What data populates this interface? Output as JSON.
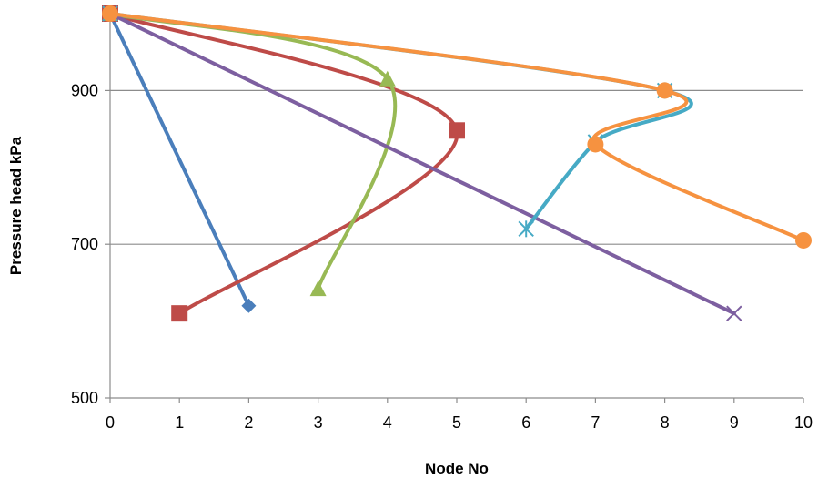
{
  "chart_data": {
    "type": "line",
    "title": "",
    "xlabel": "Node No",
    "ylabel": "Pressure head kPa",
    "xlim": [
      0,
      10
    ],
    "ylim": [
      500,
      1000
    ],
    "xticks": [
      0,
      1,
      2,
      3,
      4,
      5,
      6,
      7,
      8,
      9,
      10
    ],
    "yticks": [
      500,
      700,
      900
    ],
    "grid": "horizontal major gridlines",
    "legend": "none",
    "smoothed": true,
    "series": [
      {
        "color": "#4a7ebb",
        "marker": "diamond",
        "points": [
          [
            0,
            1000
          ],
          [
            2,
            620
          ]
        ]
      },
      {
        "color": "#be4b48",
        "marker": "square",
        "points": [
          [
            0,
            1000
          ],
          [
            5,
            848
          ],
          [
            1,
            610
          ]
        ]
      },
      {
        "color": "#98b954",
        "marker": "triangle",
        "points": [
          [
            0,
            1000
          ],
          [
            4,
            915
          ],
          [
            3,
            642
          ]
        ]
      },
      {
        "color": "#7d5fa0",
        "marker": "x",
        "points": [
          [
            0,
            1000
          ],
          [
            9,
            610
          ]
        ]
      },
      {
        "color": "#46aac5",
        "marker": "star",
        "points": [
          [
            0,
            1000
          ],
          [
            8,
            900
          ],
          [
            7,
            833
          ],
          [
            6,
            720
          ]
        ]
      },
      {
        "color": "#f69240",
        "marker": "circle",
        "points": [
          [
            0,
            1000
          ],
          [
            8,
            900
          ],
          [
            7,
            830
          ],
          [
            10,
            705
          ]
        ]
      }
    ]
  }
}
